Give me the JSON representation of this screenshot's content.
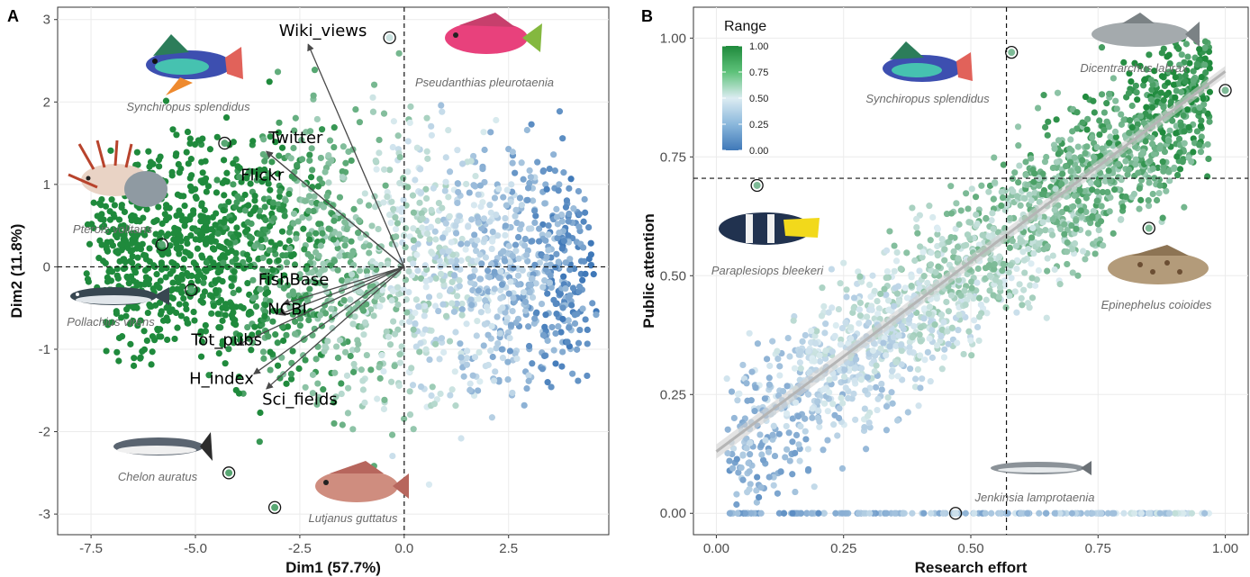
{
  "colors": {
    "low": "#3f78b8",
    "mid": "#dcecf2",
    "high": "#1f8a3c",
    "arrow": "#4a4a4a",
    "grid": "#ebebeb",
    "fit": "#b5b5b5"
  },
  "chart_data": [
    {
      "panel": "A",
      "type": "scatter",
      "xlabel": "Dim1 (57.7%)",
      "ylabel": "Dim2 (11.8%)",
      "xlim": [
        -8.3,
        4.9
      ],
      "ylim": [
        -3.25,
        3.15
      ],
      "xticks": [
        -7.5,
        -5.0,
        -2.5,
        0.0,
        2.5
      ],
      "xtick_labels": [
        "-7.5",
        "-5.0",
        "-2.5",
        "0.0",
        "2.5"
      ],
      "yticks": [
        -3,
        -2,
        -1,
        0,
        1,
        2,
        3
      ],
      "ytick_labels": [
        "-3",
        "-2",
        "-1",
        "0",
        "1",
        "2",
        "3"
      ],
      "reference_lines": {
        "x": 0,
        "y": 0
      },
      "grid": true,
      "loadings": [
        {
          "label": "Wiki_views",
          "x": -2.3,
          "y": 2.7
        },
        {
          "label": "Twitter",
          "x": -3.3,
          "y": 1.4
        },
        {
          "label": "Flickr",
          "x": -3.3,
          "y": 1.4
        },
        {
          "label": "FishBase",
          "x": -2.9,
          "y": -0.45
        },
        {
          "label": "NCBI",
          "x": -3.0,
          "y": -0.58
        },
        {
          "label": "Tot_pubs",
          "x": -4.0,
          "y": -0.95
        },
        {
          "label": "H_index",
          "x": -3.6,
          "y": -1.3
        },
        {
          "label": "Sci_fields",
          "x": -3.3,
          "y": -1.48
        }
      ],
      "highlighted": [
        {
          "name": "Synchiropus splendidus",
          "x": -4.3,
          "y": 1.5
        },
        {
          "name": "Pseudanthias pleurotaenia",
          "x": -0.35,
          "y": 2.78
        },
        {
          "name": "Pterois volitans",
          "x": -5.8,
          "y": 0.27
        },
        {
          "name": "Pollachius virens",
          "x": -5.1,
          "y": -0.28
        },
        {
          "name": "Chelon auratus",
          "x": -4.2,
          "y": -2.5
        },
        {
          "name": "Lutjanus guttatus",
          "x": -3.1,
          "y": -2.92
        }
      ]
    },
    {
      "panel": "B",
      "type": "scatter",
      "xlabel": "Research effort",
      "ylabel": "Public attention",
      "xlim": [
        -0.045,
        1.045
      ],
      "ylim": [
        -0.045,
        1.065
      ],
      "xticks": [
        0,
        0.25,
        0.5,
        0.75,
        1.0
      ],
      "xtick_labels": [
        "0.00",
        "0.25",
        "0.50",
        "0.75",
        "1.00"
      ],
      "yticks": [
        0,
        0.25,
        0.5,
        0.75,
        1.0
      ],
      "ytick_labels": [
        "0.00",
        "0.25",
        "0.50",
        "0.75",
        "1.00"
      ],
      "reference_lines": {
        "x": 0.57,
        "y": 0.705
      },
      "fit_line": {
        "x": [
          0,
          1
        ],
        "y": [
          0.13,
          0.93
        ]
      },
      "grid": true,
      "legend": {
        "title": "Range",
        "position": "top-left",
        "ticks": [
          1.0,
          0.75,
          0.5,
          0.25,
          0.0
        ],
        "tick_labels": [
          "1.00",
          "0.75",
          "0.50",
          "0.25",
          "0.00"
        ]
      },
      "highlighted": [
        {
          "name": "Synchiropus splendidus",
          "x": 0.58,
          "y": 0.97
        },
        {
          "name": "Dicentrarchus labrax",
          "x": 1.0,
          "y": 0.89
        },
        {
          "name": "Paraplesiops bleekeri",
          "x": 0.08,
          "y": 0.69
        },
        {
          "name": "Epinephelus coioides",
          "x": 0.85,
          "y": 0.6
        },
        {
          "name": "Jenkinsia lamprotaenia",
          "x": 0.47,
          "y": 0.0
        }
      ]
    }
  ],
  "species_labels": {
    "synchiropus_a": "Synchiropus splendidus",
    "pseudanthias": "Pseudanthias pleurotaenia",
    "pterois": "Pterois volitans",
    "pollachius": "Pollachius virens",
    "chelon": "Chelon auratus",
    "lutjanus": "Lutjanus guttatus",
    "synchiropus_b": "Synchiropus splendidus",
    "dicentrarchus": "Dicentrarchus labrax",
    "paraplesiops": "Paraplesiops bleekeri",
    "epinephelus": "Epinephelus coioides",
    "jenkinsia": "Jenkinsia lamprotaenia"
  },
  "panel_letters": [
    "A",
    "B"
  ]
}
